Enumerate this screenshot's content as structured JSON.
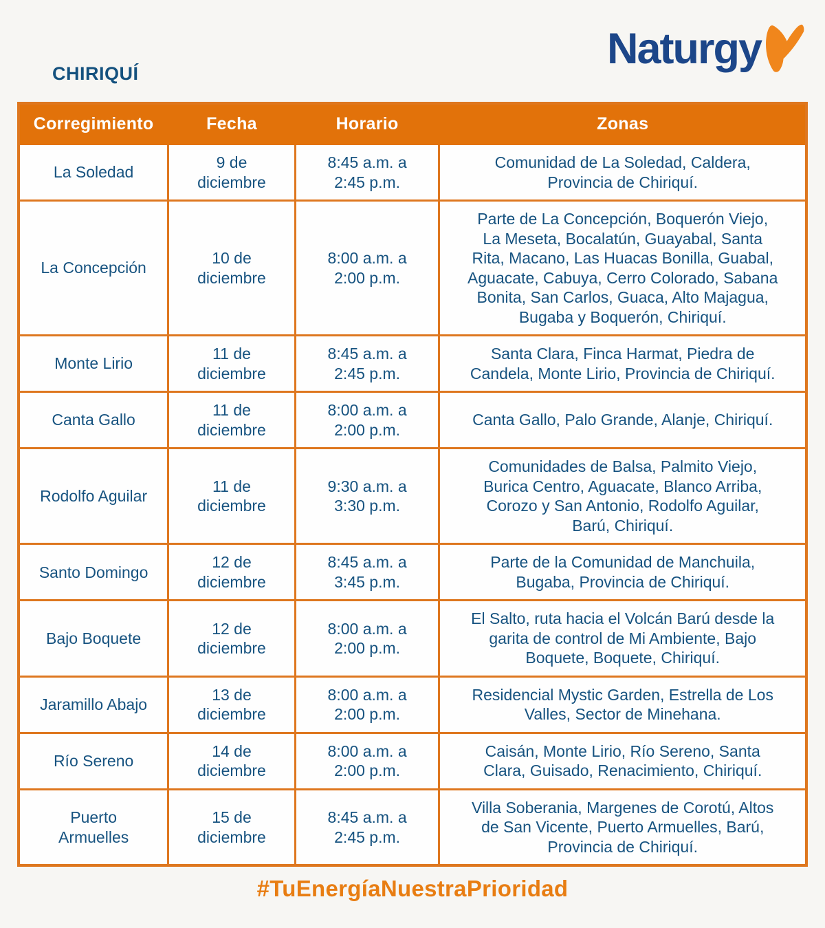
{
  "header": {
    "region_title": "CHIRIQUÍ",
    "brand_name": "Naturgy"
  },
  "table": {
    "headers": [
      "Corregimiento",
      "Fecha",
      "Horario",
      "Zonas"
    ],
    "rows": [
      {
        "corregimiento": "La Soledad",
        "fecha": "9 de\ndiciembre",
        "horario": "8:45 a.m. a\n2:45 p.m.",
        "zonas": "Comunidad de La Soledad, Caldera,\nProvincia de Chiriquí."
      },
      {
        "corregimiento": "La Concepción",
        "fecha": "10 de\ndiciembre",
        "horario": "8:00 a.m. a\n2:00 p.m.",
        "zonas": "Parte de La Concepción, Boquerón Viejo,\nLa Meseta, Bocalatún, Guayabal, Santa\nRita, Macano, Las Huacas Bonilla, Guabal,\nAguacate, Cabuya, Cerro Colorado, Sabana\nBonita, San Carlos, Guaca, Alto Majagua,\nBugaba y Boquerón, Chiriquí."
      },
      {
        "corregimiento": "Monte Lirio",
        "fecha": "11 de\ndiciembre",
        "horario": "8:45 a.m. a\n2:45 p.m.",
        "zonas": "Santa Clara, Finca Harmat, Piedra de\nCandela, Monte Lirio, Provincia de Chiriquí."
      },
      {
        "corregimiento": "Canta Gallo",
        "fecha": "11 de\ndiciembre",
        "horario": "8:00 a.m. a\n2:00 p.m.",
        "zonas": "Canta Gallo, Palo Grande, Alanje, Chiriquí."
      },
      {
        "corregimiento": "Rodolfo Aguilar",
        "fecha": "11 de\ndiciembre",
        "horario": "9:30 a.m. a\n3:30 p.m.",
        "zonas": "Comunidades de Balsa, Palmito Viejo,\nBurica Centro, Aguacate, Blanco Arriba,\nCorozo y San Antonio, Rodolfo Aguilar,\nBarú, Chiriquí."
      },
      {
        "corregimiento": "Santo Domingo",
        "fecha": "12 de\ndiciembre",
        "horario": "8:45 a.m. a\n3:45 p.m.",
        "zonas": "Parte de la Comunidad de Manchuila,\nBugaba, Provincia de Chiriquí."
      },
      {
        "corregimiento": "Bajo Boquete",
        "fecha": "12 de\ndiciembre",
        "horario": "8:00 a.m. a\n2:00 p.m.",
        "zonas": "El Salto, ruta hacia el Volcán Barú desde la\ngarita de control de Mi Ambiente, Bajo\nBoquete, Boquete, Chiriquí."
      },
      {
        "corregimiento": "Jaramillo Abajo",
        "fecha": "13 de\ndiciembre",
        "horario": "8:00 a.m. a\n2:00 p.m.",
        "zonas": "Residencial Mystic Garden, Estrella de Los\nValles, Sector de Minehana."
      },
      {
        "corregimiento": "Río Sereno",
        "fecha": "14 de\ndiciembre",
        "horario": "8:00 a.m. a\n2:00 p.m.",
        "zonas": "Caisán, Monte Lirio, Río Sereno, Santa\nClara, Guisado, Renacimiento, Chiriquí."
      },
      {
        "corregimiento": "Puerto\nArmuelles",
        "fecha": "15 de\ndiciembre",
        "horario": "8:45 a.m. a\n2:45 p.m.",
        "zonas": "Villa Soberania, Margenes de Corotú, Altos\nde San Vicente, Puerto Armuelles, Barú,\nProvincia de Chiriquí."
      }
    ]
  },
  "footer": {
    "hashtag": "#TuEnergíaNuestraPrioridad"
  },
  "colors": {
    "header_orange": "#E2720A",
    "border_orange": "#DE771F",
    "body_text_blue": "#175380",
    "logo_blue": "#1C4689",
    "butterfly_orange": "#F0861C",
    "hashtag_orange": "#E87D12",
    "page_background": "#F7F6F3"
  },
  "icons": {
    "brand_mark": "naturgy-butterfly-icon"
  }
}
